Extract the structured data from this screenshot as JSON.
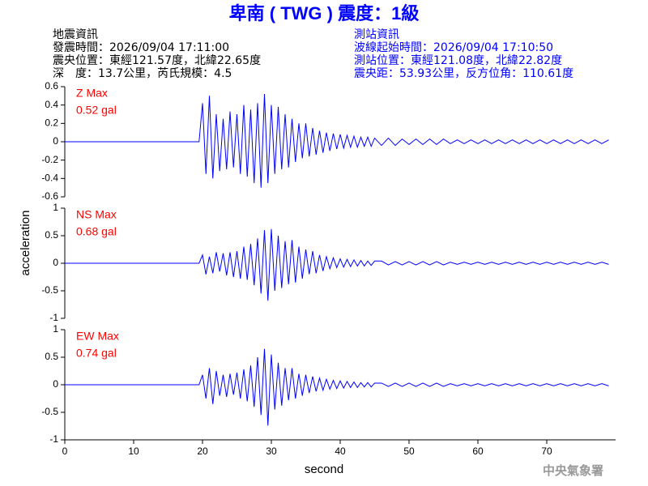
{
  "chart_data": {
    "type": "line",
    "title": "卑南 ( TWG ) 震度：1級",
    "event_info": [
      "地震資訊",
      "發震時間：2026/09/04 17:11:00",
      "震央位置：東經121.57度，北緯22.65度",
      "深　度：13.7公里，芮氏規模：4.5"
    ],
    "station_info": [
      "測站資訊",
      "波線起始時間：2026/09/04 17:10:50",
      "測站位置：東經121.08度，北緯22.82度",
      "震央距：53.93公里，反方位角：110.61度"
    ],
    "xlabel": "second",
    "ylabel": "acceleration",
    "credit": "中央氣象署",
    "xlim": [
      0,
      80
    ],
    "xticks": [
      0,
      10,
      20,
      30,
      40,
      50,
      60,
      70
    ],
    "x": [
      0,
      19.5,
      20,
      20.5,
      21,
      21.5,
      22,
      22.5,
      23,
      23.5,
      24,
      24.5,
      25,
      25.5,
      26,
      26.5,
      27,
      27.5,
      28,
      28.5,
      29,
      29.5,
      30,
      30.5,
      31,
      31.5,
      32,
      32.5,
      33,
      33.5,
      34,
      34.5,
      35,
      35.5,
      36,
      36.5,
      37,
      37.5,
      38,
      38.5,
      39,
      39.5,
      40,
      40.5,
      41,
      41.5,
      42,
      42.5,
      43,
      43.5,
      44,
      44.5,
      45,
      46,
      47,
      48,
      49,
      50,
      51,
      52,
      53,
      54,
      55,
      56,
      57,
      58,
      59,
      60,
      61,
      62,
      63,
      64,
      65,
      66,
      67,
      68,
      69,
      70,
      71,
      72,
      73,
      74,
      75,
      76,
      77,
      78,
      79
    ],
    "panels": [
      {
        "label": "Z Max",
        "max_label": "0.52 gal",
        "ylim": [
          -0.6,
          0.6
        ],
        "yticks": [
          0.6,
          0.4,
          0.2,
          0,
          -0.2,
          -0.4,
          -0.6
        ],
        "series": [
          {
            "color": "#0000ff",
            "values": [
              0,
              0,
              0.42,
              -0.35,
              0.5,
              -0.4,
              0.3,
              -0.32,
              0.25,
              -0.3,
              0.33,
              -0.28,
              0.3,
              -0.35,
              0.4,
              -0.38,
              0.35,
              -0.45,
              0.42,
              -0.5,
              0.52,
              -0.45,
              0.4,
              -0.35,
              0.38,
              -0.3,
              0.3,
              -0.28,
              0.25,
              -0.22,
              0.2,
              -0.18,
              0.2,
              -0.16,
              0.15,
              -0.14,
              0.12,
              -0.12,
              0.1,
              -0.1,
              0.09,
              -0.08,
              0.08,
              -0.07,
              0.07,
              -0.06,
              0.06,
              -0.06,
              0.05,
              -0.05,
              0.05,
              -0.05,
              0.04,
              -0.04,
              0.04,
              -0.04,
              0.03,
              -0.03,
              0.03,
              -0.03,
              0.03,
              -0.03,
              0.03,
              -0.02,
              0.02,
              -0.02,
              0.02,
              -0.02,
              0.02,
              -0.02,
              0.02,
              -0.02,
              0.02,
              -0.02,
              0.02,
              -0.02,
              0.02,
              -0.02,
              0.02,
              -0.02,
              0.02,
              -0.02,
              0.02,
              -0.02,
              0.02,
              -0.02,
              0.02
            ]
          }
        ]
      },
      {
        "label": "NS Max",
        "max_label": "0.68 gal",
        "ylim": [
          -1,
          1
        ],
        "yticks": [
          1,
          0.5,
          0,
          -0.5,
          -1
        ],
        "series": [
          {
            "color": "#0000ff",
            "values": [
              0,
              0,
              0.15,
              -0.2,
              0.12,
              -0.18,
              0.2,
              -0.15,
              0.18,
              -0.22,
              0.2,
              -0.25,
              0.22,
              -0.28,
              0.3,
              -0.3,
              0.35,
              -0.4,
              0.45,
              -0.55,
              0.6,
              -0.68,
              0.62,
              -0.5,
              0.5,
              -0.45,
              0.4,
              -0.38,
              0.42,
              -0.35,
              0.3,
              -0.28,
              0.25,
              -0.2,
              0.22,
              -0.18,
              0.15,
              -0.14,
              0.12,
              -0.1,
              0.1,
              -0.08,
              0.08,
              -0.07,
              0.07,
              -0.06,
              0.06,
              -0.05,
              0.05,
              -0.05,
              0.04,
              -0.04,
              0.04,
              0.04,
              -0.03,
              0.03,
              -0.03,
              0.03,
              -0.03,
              0.03,
              -0.03,
              0.03,
              -0.03,
              0.02,
              -0.02,
              0.02,
              -0.02,
              0.02,
              -0.02,
              0.02,
              -0.02,
              0.02,
              -0.02,
              0.02,
              -0.02,
              0.02,
              -0.02,
              0.02,
              -0.02,
              0.02,
              -0.02,
              0.02,
              -0.02,
              0.02,
              -0.02,
              0.02,
              -0.02
            ]
          }
        ]
      },
      {
        "label": "EW Max",
        "max_label": "0.74 gal",
        "ylim": [
          -1,
          1
        ],
        "yticks": [
          1,
          0.5,
          0,
          -0.5,
          -1
        ],
        "series": [
          {
            "color": "#0000ff",
            "values": [
              0,
              0,
              0.18,
              -0.25,
              0.3,
              -0.35,
              0.25,
              -0.2,
              0.18,
              -0.22,
              0.2,
              -0.18,
              0.22,
              -0.25,
              0.28,
              -0.3,
              0.35,
              -0.4,
              0.5,
              -0.55,
              0.65,
              -0.74,
              0.55,
              -0.45,
              0.4,
              -0.38,
              0.3,
              -0.28,
              0.3,
              -0.25,
              0.2,
              -0.2,
              0.18,
              -0.15,
              0.15,
              -0.12,
              0.12,
              -0.1,
              0.1,
              -0.08,
              0.08,
              -0.07,
              0.07,
              -0.06,
              0.06,
              -0.05,
              0.05,
              -0.05,
              0.04,
              -0.04,
              0.04,
              -0.04,
              0.03,
              0.03,
              -0.03,
              0.03,
              -0.03,
              0.03,
              -0.03,
              0.03,
              -0.03,
              0.03,
              -0.03,
              0.02,
              -0.02,
              0.02,
              -0.02,
              0.02,
              -0.02,
              0.02,
              -0.02,
              0.02,
              -0.02,
              0.02,
              -0.02,
              0.02,
              -0.02,
              0.02,
              -0.02,
              0.02,
              -0.02,
              0.02,
              -0.02,
              0.02,
              -0.02,
              0.02,
              -0.02
            ]
          }
        ]
      }
    ]
  }
}
